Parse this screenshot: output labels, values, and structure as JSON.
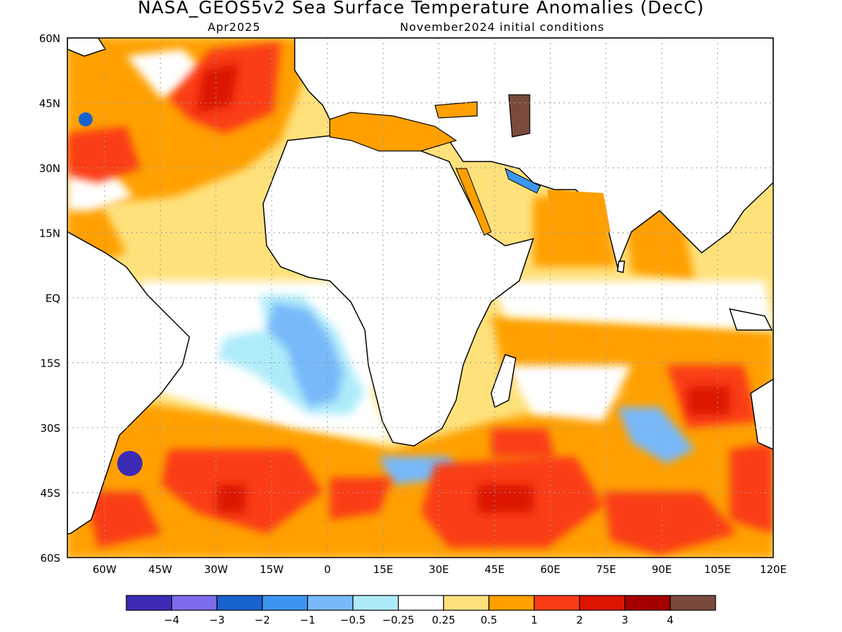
{
  "title": "NASA_GEOS5v2 Sea Surface Temperature Anomalies (DecC)",
  "subtitle_left": "Apr2025",
  "subtitle_right": "November2024 initial conditions",
  "map": {
    "lon_range": [
      -70,
      120
    ],
    "lat_range": [
      -60,
      60
    ],
    "lon_ticks": [
      "60W",
      "45W",
      "30W",
      "15W",
      "0",
      "15E",
      "30E",
      "45E",
      "60E",
      "75E",
      "90E",
      "105E",
      "120E"
    ],
    "lat_ticks": [
      "60N",
      "45N",
      "30N",
      "15N",
      "EQ",
      "15S",
      "30S",
      "45S",
      "60S"
    ],
    "grid": true
  },
  "colorbar": {
    "colors": [
      "#3c2bb4",
      "#7c6bea",
      "#1862d0",
      "#3c96f0",
      "#78b9fa",
      "#afecfa",
      "#ffffff",
      "#ffe17c",
      "#ffa000",
      "#fa3c14",
      "#dc1400",
      "#a50000",
      "#7a4a3e"
    ],
    "labels": [
      "−4",
      "−3",
      "−2",
      "−1",
      "−0.5",
      "−0.25",
      "0.25",
      "0.5",
      "1",
      "2",
      "3",
      "4"
    ]
  },
  "anomaly_regions": [
    {
      "name": "south-atlantic-cool-tongue",
      "level": -0.5,
      "lon": [
        -3,
        10,
        20,
        10,
        0,
        -10,
        -5,
        -3
      ],
      "lat": [
        5,
        3,
        -15,
        -27,
        -30,
        -20,
        -10,
        5
      ]
    },
    {
      "name": "north-atlantic-warm",
      "level": 1,
      "lon": [
        -70,
        -60,
        -40,
        -20,
        -10,
        -15,
        -40,
        -70
      ],
      "lat": [
        35,
        50,
        58,
        55,
        45,
        30,
        20,
        20
      ]
    },
    {
      "name": "southern-ocean-warm",
      "level": 2,
      "lon": [
        -60,
        -20,
        20,
        60,
        100,
        120,
        120,
        -60
      ],
      "lat": [
        -40,
        -45,
        -42,
        -40,
        -40,
        -35,
        -60,
        -60
      ]
    },
    {
      "name": "indian-ocean-warm",
      "level": 1,
      "lon": [
        55,
        80,
        100,
        120,
        120,
        90,
        60,
        55
      ],
      "lat": [
        -5,
        -10,
        -8,
        -15,
        -30,
        -30,
        -25,
        -5
      ]
    }
  ]
}
